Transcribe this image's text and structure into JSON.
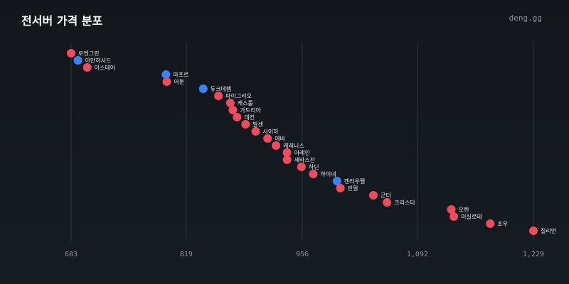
{
  "header": {
    "title": "전서버 가격 분포",
    "brand": "deng.gg"
  },
  "colors": {
    "background": "#13171c",
    "red": "#ef4b5e",
    "blue": "#3b82f6",
    "grid": "#2e3540"
  },
  "chart_data": {
    "type": "scatter",
    "title": "전서버 가격 분포",
    "xlabel": "",
    "ylabel": "",
    "xlim": [
      683,
      1229
    ],
    "xticks": [
      683,
      819,
      956,
      1092,
      1229
    ],
    "xtick_labels": [
      "683",
      "819",
      "956",
      "1,092",
      "1,229"
    ],
    "grid": true,
    "points": [
      {
        "label": "로엔그린",
        "value": 683,
        "color": "red"
      },
      {
        "label": "아만하사드",
        "value": 691,
        "color": "blue"
      },
      {
        "label": "아스테어",
        "value": 702,
        "color": "red"
      },
      {
        "label": "마프르",
        "value": 795,
        "color": "blue"
      },
      {
        "label": "아툰",
        "value": 796,
        "color": "red"
      },
      {
        "label": "듀크데펨",
        "value": 839,
        "color": "blue"
      },
      {
        "label": "파이그리오",
        "value": 857,
        "color": "red"
      },
      {
        "label": "캐스톨",
        "value": 871,
        "color": "red"
      },
      {
        "label": "가드리아",
        "value": 874,
        "color": "red"
      },
      {
        "label": "데컨",
        "value": 879,
        "color": "red"
      },
      {
        "label": "발센",
        "value": 889,
        "color": "red"
      },
      {
        "label": "사이하",
        "value": 901,
        "color": "red"
      },
      {
        "label": "에바",
        "value": 915,
        "color": "red"
      },
      {
        "label": "케레니스",
        "value": 925,
        "color": "red"
      },
      {
        "label": "어레인",
        "value": 938,
        "color": "red"
      },
      {
        "label": "세바스찬",
        "value": 938,
        "color": "red"
      },
      {
        "label": "하딘",
        "value": 955,
        "color": "red"
      },
      {
        "label": "하이네",
        "value": 969,
        "color": "red"
      },
      {
        "label": "켄라우펠",
        "value": 997,
        "color": "blue"
      },
      {
        "label": "린델",
        "value": 1001,
        "color": "red"
      },
      {
        "label": "군터",
        "value": 1040,
        "color": "red"
      },
      {
        "label": "크리스터",
        "value": 1056,
        "color": "red"
      },
      {
        "label": "오렌",
        "value": 1132,
        "color": "red"
      },
      {
        "label": "이실로테",
        "value": 1135,
        "color": "red"
      },
      {
        "label": "조우",
        "value": 1178,
        "color": "red"
      },
      {
        "label": "질리언",
        "value": 1229,
        "color": "red"
      }
    ]
  }
}
